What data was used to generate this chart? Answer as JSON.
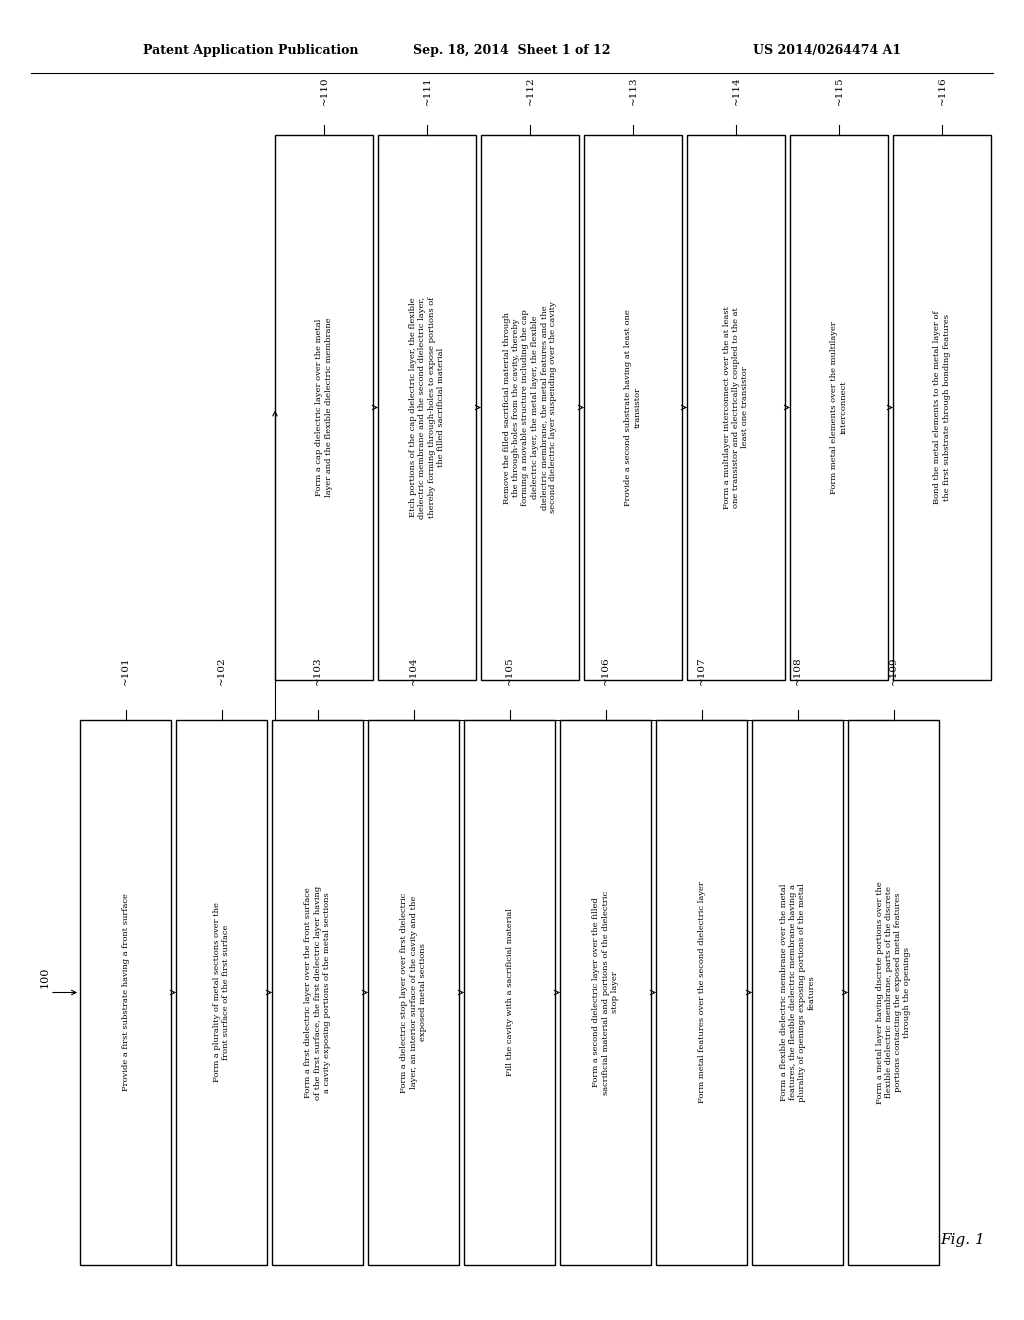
{
  "header_left": "Patent Application Publication",
  "header_center": "Sep. 18, 2014  Sheet 1 of 12",
  "header_right": "US 2014/0264474 A1",
  "fig_label": "Fig. 1",
  "start_label": "100",
  "bottom_boxes": [
    {
      "id": "101",
      "text": "Provide a first substrate having a front surface"
    },
    {
      "id": "102",
      "text": "Form a plurality of metal sections over the\nfront surface of the first surface"
    },
    {
      "id": "103",
      "text": "Form a first dielectric layer over the front surface\nof the first surface, the first dielectric layer having\na cavity exposing portions of the metal sections"
    },
    {
      "id": "104",
      "text": "Form a dielectric stop layer over first dielectric\nlayer, an interior surface of the cavity and the\nexposed metal sections"
    },
    {
      "id": "105",
      "text": "Fill the cavity with a sacrificial material"
    },
    {
      "id": "106",
      "text": "Form a second dielectric layer over the filled\nsacrificial material and portions of the dielectric\nstop layer"
    },
    {
      "id": "107",
      "text": "Form metal features over the second dielectric layer"
    },
    {
      "id": "108",
      "text": "Form a flexible dielectric membrane over the metal\nfeatures, the flexible dielectric membrane having a\nplurality of openings exposing portions of the metal\nfeatures"
    },
    {
      "id": "109",
      "text": "Form a metal layer having discrete portions over the\nflexible dielectric membrane, parts of the discrete\nportions contacting the exposed metal features\nthrough the openings"
    }
  ],
  "top_boxes": [
    {
      "id": "110",
      "text": "Form a cap dielectric layer over the metal\nlayer and the flexible dielectric membrane"
    },
    {
      "id": "111",
      "text": "Etch portions of the cap dielectric layer, the flexible\ndielectric membrane and the second dielectric layer,\nthereby forming through-holes to expose portions of\nthe filled sacrificial material"
    },
    {
      "id": "112",
      "text": "Remove the filled sacrificial material through\nthe through-holes from the cavity, thereby\nforming a movable structure including the cap\ndielectric layer, the metal layer, the flexible\ndielectric membrane, the metal features and the\nsecond dielectric layer suspending over the cavity"
    },
    {
      "id": "113",
      "text": "Provide a second substrate having at least one\ntransistor"
    },
    {
      "id": "114",
      "text": "Form a multilayer interconnect over the at least\none transistor and electrically coupled to the at\nleast one transistor"
    },
    {
      "id": "115",
      "text": "Form metal elements over the multilayer\ninterconnect"
    },
    {
      "id": "116",
      "text": "Bond the metal elements to the metal layer of\nthe first substrate through bonding features"
    }
  ],
  "bg_color": "#ffffff",
  "line_color": "#000000",
  "text_color": "#000000",
  "font_size_box": 7.5,
  "font_size_label": 8,
  "font_size_header": 9
}
